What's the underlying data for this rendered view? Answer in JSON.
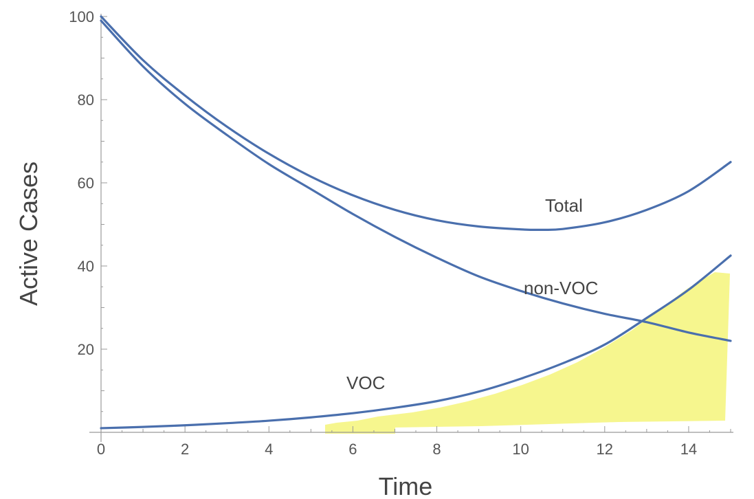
{
  "chart_data": {
    "type": "line",
    "title": "",
    "xlabel": "Time",
    "ylabel": "Active Cases",
    "xlim": [
      0,
      15
    ],
    "ylim": [
      0,
      100
    ],
    "x_ticks": [
      0,
      2,
      4,
      6,
      8,
      10,
      12,
      14
    ],
    "y_ticks": [
      20,
      40,
      60,
      80,
      100
    ],
    "grid": false,
    "line_color": "#4a6fad",
    "highlight_color": "#f5f57a",
    "series": [
      {
        "name": "Total",
        "x": [
          0,
          1,
          2,
          3,
          4,
          5,
          6,
          7,
          8,
          9,
          10,
          10.5,
          11,
          12,
          13,
          14,
          15
        ],
        "values": [
          100,
          89.5,
          81,
          73.5,
          67,
          61.5,
          57,
          53.5,
          51,
          49.5,
          48.8,
          48.7,
          48.9,
          50.5,
          53.5,
          58,
          65
        ]
      },
      {
        "name": "non-VOC",
        "x": [
          0,
          1,
          2,
          3,
          4,
          5,
          6,
          7,
          8,
          9,
          10,
          11,
          12,
          13,
          14,
          15
        ],
        "values": [
          99,
          88,
          79,
          71.5,
          64.5,
          58.5,
          52.5,
          47,
          42,
          37.5,
          34,
          31,
          28.5,
          26.5,
          24,
          22
        ]
      },
      {
        "name": "VOC",
        "x": [
          0,
          1,
          2,
          3,
          4,
          5,
          6,
          7,
          8,
          9,
          10,
          11,
          12,
          13,
          14,
          15
        ],
        "values": [
          1,
          1.3,
          1.7,
          2.2,
          2.8,
          3.6,
          4.6,
          5.9,
          7.5,
          9.8,
          12.9,
          16.6,
          21.1,
          27.5,
          34.3,
          42.5
        ]
      }
    ]
  },
  "labels": {
    "total": "Total",
    "non_voc": "non-VOC",
    "voc": "VOC"
  }
}
